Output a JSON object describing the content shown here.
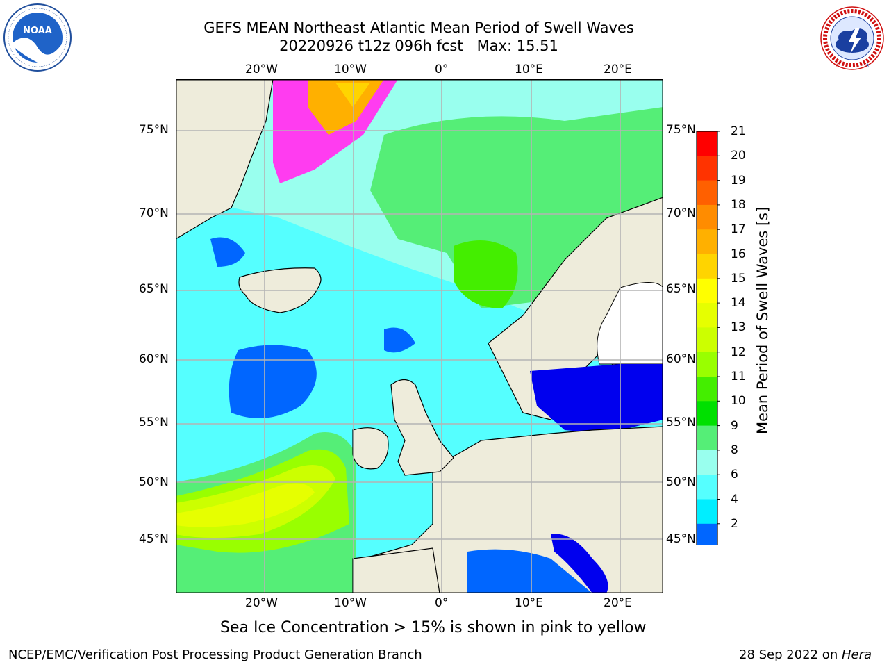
{
  "header": {
    "title_line1": "GEFS MEAN Northeast Atlantic Mean Period of Swell Waves",
    "title_line2": "20220926 t12z 096h fcst   Max: 15.51"
  },
  "logos": {
    "left": "NOAA",
    "left_ring_text": "NATIONAL OCEANIC AND ATMOSPHERIC ADMINISTRATION · U.S. DEPARTMENT OF COMMERCE",
    "right_ring_text": "NATIONAL WEATHER SERVICE"
  },
  "map": {
    "lon_top_labels": [
      "20°W",
      "10°W",
      "0°",
      "10°E",
      "20°E"
    ],
    "lon_bottom_labels": [
      "20°W",
      "10°W",
      "0°",
      "10°E",
      "20°E"
    ],
    "lat_left_labels": [
      "75°N",
      "70°N",
      "65°N",
      "60°N",
      "55°N",
      "50°N",
      "45°N"
    ],
    "lat_right_labels": [
      "75°N",
      "70°N",
      "65°N",
      "60°N",
      "55°N",
      "50°N",
      "45°N"
    ],
    "colors": {
      "land": "#eeecdb",
      "gridline": "#b4b4b4",
      "ice_pink": "#ff3cf0",
      "ice_orange": "#ffb000"
    }
  },
  "colorbar": {
    "title": "Mean Period of Swell Waves [s]",
    "labels": [
      "21",
      "20",
      "19",
      "18",
      "17",
      "16",
      "15",
      "14",
      "13",
      "12",
      "11",
      "10",
      "9",
      "8",
      "6",
      "4",
      "2"
    ],
    "colors_top_to_bottom": [
      "#ff0000",
      "#ff3300",
      "#ff6000",
      "#ff8c00",
      "#ffb000",
      "#ffd400",
      "#ffff00",
      "#e6ff00",
      "#ccff00",
      "#99ff00",
      "#44ee00",
      "#00e000",
      "#55ee77",
      "#99ffee",
      "#55ffff",
      "#00eeff",
      "#0066ff"
    ],
    "under_color": "#0000ee"
  },
  "caption": "Sea Ice Concentration > 15% is shown in pink to yellow",
  "footer": {
    "left": "NCEP/EMC/Verification Post Processing Product Generation Branch",
    "right_prefix": "28 Sep 2022 on ",
    "right_host": "Hera"
  }
}
